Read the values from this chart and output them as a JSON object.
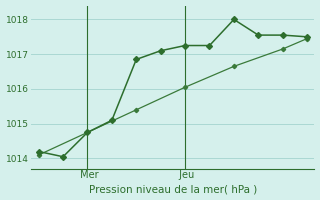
{
  "bg_color": "#d5f0ec",
  "grid_color": "#aad8d3",
  "line_color": "#2d6e2d",
  "line2_color": "#3a7a3a",
  "title": "Pression niveau de la mer( hPa )",
  "ylim": [
    1013.7,
    1018.4
  ],
  "yticks": [
    1014,
    1015,
    1016,
    1017,
    1018
  ],
  "xmin": 0,
  "xmax": 11,
  "mer_x": 2,
  "jeu_x": 6,
  "line1_x": [
    0,
    1,
    2,
    3,
    4,
    5,
    6,
    7,
    8,
    9,
    10,
    11
  ],
  "line1_y": [
    1014.2,
    1014.05,
    1014.75,
    1015.1,
    1016.85,
    1017.1,
    1017.25,
    1017.25,
    1018.0,
    1017.55,
    1017.55,
    1017.5
  ],
  "line2_x": [
    0,
    2,
    4,
    6,
    8,
    10,
    11
  ],
  "line2_y": [
    1014.1,
    1014.75,
    1015.4,
    1016.05,
    1016.65,
    1017.15,
    1017.45
  ],
  "figsize": [
    3.2,
    2.0
  ],
  "dpi": 100
}
